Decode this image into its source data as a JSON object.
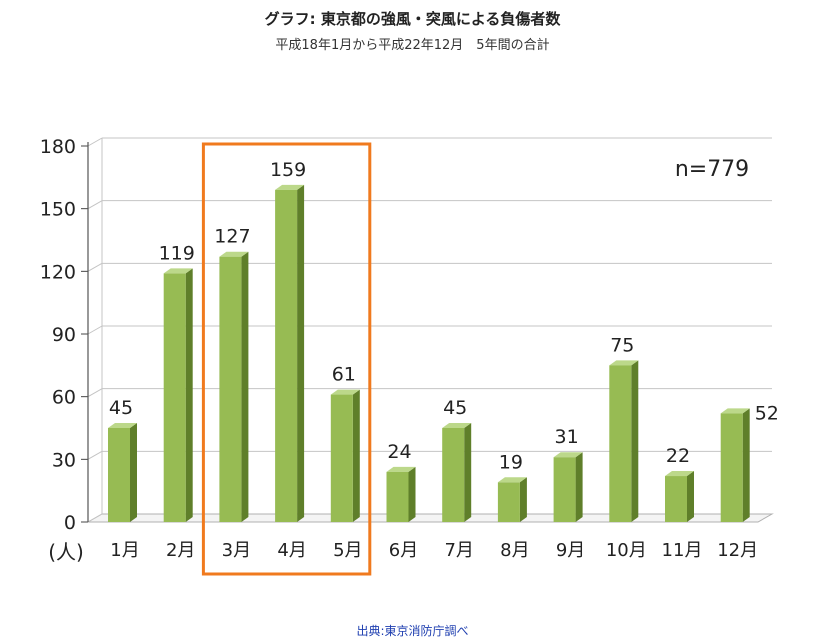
{
  "title": "グラフ: 東京都の強風・突風による負傷者数",
  "subtitle": "平成18年1月から平成22年12月　5年間の合計",
  "source": "出典:東京消防庁調べ",
  "colors": {
    "bar_front": "#97bb53",
    "bar_side": "#5f7f2a",
    "bar_top": "#bcd88a",
    "highlight": "#f07a1e",
    "grid": "#c4c4c4"
  },
  "chart_data": {
    "type": "bar",
    "annotation": "n=779",
    "unit_label": "(人)",
    "categories": [
      "1月",
      "2月",
      "3月",
      "4月",
      "5月",
      "6月",
      "7月",
      "8月",
      "9月",
      "10月",
      "11月",
      "12月"
    ],
    "values": [
      45,
      119,
      127,
      159,
      61,
      24,
      45,
      19,
      31,
      75,
      22,
      52
    ],
    "ylim": [
      0,
      180
    ],
    "yticks": [
      0,
      30,
      60,
      90,
      120,
      150,
      180
    ],
    "grid": true,
    "highlight_categories": [
      "3月",
      "4月",
      "5月"
    ]
  }
}
